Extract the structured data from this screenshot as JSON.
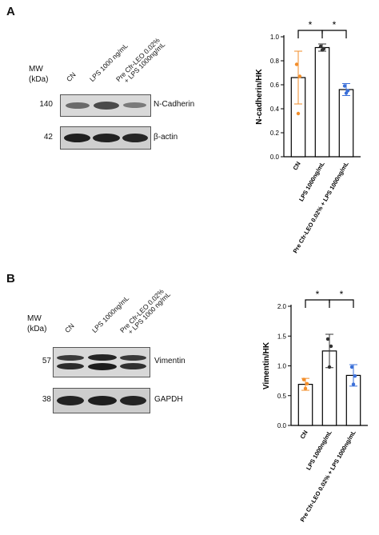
{
  "panels": {
    "A": {
      "letter": "A",
      "mw_label": "MW",
      "kda_label": "(kDa)",
      "lanes": [
        "CN",
        "LPS 1000 ng/mL",
        "Pre Cfr-LEO 0.02%",
        "+ LPS 1000ng/mL"
      ],
      "blots": [
        {
          "kda": "140",
          "protein": "N-Cadherin"
        },
        {
          "kda": "42",
          "protein": "β-actin"
        }
      ]
    },
    "B": {
      "letter": "B",
      "mw_label": "MW",
      "kda_label": "(kDa)",
      "lanes": [
        "CN",
        "LPS 1000ng/mL",
        "Pre Cfr-LEO 0.02%",
        "+ LPS 1000 ng/mL"
      ],
      "blots": [
        {
          "kda": "57",
          "protein": "Vimentin"
        },
        {
          "kda": "38",
          "protein": "GAPDH"
        }
      ]
    }
  },
  "chart_data": [
    {
      "type": "bar",
      "title": "",
      "ylabel": "N-cadherin/HK",
      "xlabel": "",
      "categories": [
        "CN",
        "LPS 1000ng/mL",
        "Pre Cfr-LEO 0.02% + LPS 1000ng/mL"
      ],
      "values": [
        0.66,
        0.91,
        0.56
      ],
      "error": [
        0.22,
        0.03,
        0.05
      ],
      "points": [
        [
          0.77,
          0.67,
          0.36
        ],
        [
          0.92,
          0.9,
          0.89
        ],
        [
          0.59,
          0.55,
          0.53
        ]
      ],
      "point_colors": [
        "#f28e2b",
        "#333333",
        "#3a6fd8"
      ],
      "ylim": [
        0,
        1.0
      ],
      "yticks": [
        "0.0",
        "0.2",
        "0.4",
        "0.6",
        "0.8",
        "1.0"
      ],
      "significance": [
        "*",
        "*"
      ]
    },
    {
      "type": "bar",
      "title": "",
      "ylabel": "Vimentin/HK",
      "xlabel": "",
      "categories": [
        "CN",
        "LPS 1000ng/mL",
        "Pre Cfr-LEO 0.02% + LPS 1000ng/mL"
      ],
      "values": [
        0.69,
        1.25,
        0.84
      ],
      "error": [
        0.1,
        0.28,
        0.18
      ],
      "points": [
        [
          0.77,
          0.7,
          0.62
        ],
        [
          1.45,
          1.33,
          0.98
        ],
        [
          0.98,
          0.83,
          0.69
        ]
      ],
      "point_colors": [
        "#f28e2b",
        "#333333",
        "#3a6fd8"
      ],
      "ylim": [
        0,
        2.0
      ],
      "yticks": [
        "0.0",
        "0.5",
        "1.0",
        "1.5",
        "2.0"
      ],
      "significance": [
        "*",
        "*"
      ]
    }
  ]
}
